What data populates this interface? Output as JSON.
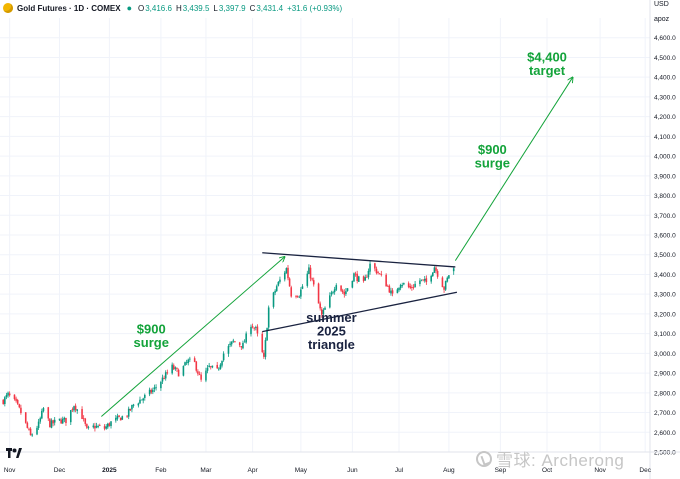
{
  "header": {
    "title": "Gold Futures · 1D · COMEX",
    "open_label": "O",
    "open": "3,416.6",
    "high_label": "H",
    "high": "3,439.5",
    "low_label": "L",
    "low": "3,397.9",
    "close_label": "C",
    "close": "3,431.4",
    "change": "+31.6 (+0.93%)",
    "currency": "USD",
    "unit": "apoz"
  },
  "watermark": {
    "text": "雪球: Archerong"
  },
  "colors": {
    "up": "#089981",
    "down": "#f23645",
    "annotation": "#13a33a",
    "pattern": "#1a2340",
    "grid": "#f0f3fa"
  },
  "icons": {
    "status": "status-dot-icon",
    "logo": "gold-logo-icon",
    "brand": "tradingview-logo-icon",
    "watermark": "snowball-icon"
  },
  "chart_data": {
    "type": "candlestick",
    "y_ticks": [
      2500,
      2600,
      2700,
      2800,
      2900,
      3000,
      3100,
      3200,
      3300,
      3400,
      3500,
      3600,
      3700,
      3800,
      3900,
      4000,
      4100,
      4200,
      4300,
      4400,
      4500,
      4600
    ],
    "y_tick_labels": [
      "2,500.0",
      "2,600.0",
      "2,700.0",
      "2,800.0",
      "2,900.0",
      "3,000.0",
      "3,100.0",
      "3,200.0",
      "3,300.0",
      "3,400.0",
      "3,500.0",
      "3,600.0",
      "3,700.0",
      "3,800.0",
      "3,900.0",
      "4,000.0",
      "4,100.0",
      "4,200.0",
      "4,300.0",
      "4,400.0",
      "4,500.0",
      "4,600.0"
    ],
    "ylim": [
      2500,
      4700
    ],
    "x_range": [
      "2024-10-26",
      "2025-12-04"
    ],
    "x_ticks": [
      {
        "label": "Nov",
        "date": "2024-11-01"
      },
      {
        "label": "Dec",
        "date": "2024-12-02"
      },
      {
        "label": "2025",
        "date": "2025-01-02"
      },
      {
        "label": "Feb",
        "date": "2025-02-03"
      },
      {
        "label": "Mar",
        "date": "2025-03-03"
      },
      {
        "label": "Apr",
        "date": "2025-04-01"
      },
      {
        "label": "May",
        "date": "2025-05-01"
      },
      {
        "label": "Jun",
        "date": "2025-06-02"
      },
      {
        "label": "Jul",
        "date": "2025-07-01"
      },
      {
        "label": "Aug",
        "date": "2025-08-01"
      },
      {
        "label": "Sep",
        "date": "2025-09-02"
      },
      {
        "label": "Oct",
        "date": "2025-10-01"
      },
      {
        "label": "Nov",
        "date": "2025-11-03"
      },
      {
        "label": "Dec",
        "date": "2025-12-01"
      }
    ],
    "close_path": [
      [
        "2024-10-28",
        2760
      ],
      [
        "2024-10-31",
        2790
      ],
      [
        "2024-11-05",
        2745
      ],
      [
        "2024-11-08",
        2700
      ],
      [
        "2024-11-14",
        2580
      ],
      [
        "2024-11-19",
        2640
      ],
      [
        "2024-11-22",
        2720
      ],
      [
        "2024-11-26",
        2640
      ],
      [
        "2024-12-02",
        2660
      ],
      [
        "2024-12-06",
        2660
      ],
      [
        "2024-12-11",
        2740
      ],
      [
        "2024-12-16",
        2680
      ],
      [
        "2024-12-19",
        2610
      ],
      [
        "2024-12-24",
        2630
      ],
      [
        "2024-12-30",
        2620
      ],
      [
        "2025-01-03",
        2650
      ],
      [
        "2025-01-08",
        2670
      ],
      [
        "2025-01-13",
        2690
      ],
      [
        "2025-01-17",
        2740
      ],
      [
        "2025-01-24",
        2780
      ],
      [
        "2025-01-30",
        2820
      ],
      [
        "2025-02-05",
        2880
      ],
      [
        "2025-02-10",
        2930
      ],
      [
        "2025-02-14",
        2900
      ],
      [
        "2025-02-20",
        2960
      ],
      [
        "2025-02-24",
        2950
      ],
      [
        "2025-02-28",
        2860
      ],
      [
        "2025-03-05",
        2930
      ],
      [
        "2025-03-10",
        2910
      ],
      [
        "2025-03-14",
        3000
      ],
      [
        "2025-03-20",
        3060
      ],
      [
        "2025-03-26",
        3040
      ],
      [
        "2025-03-31",
        3150
      ],
      [
        "2025-04-03",
        3120
      ],
      [
        "2025-04-08",
        2970
      ],
      [
        "2025-04-11",
        3230
      ],
      [
        "2025-04-16",
        3340
      ],
      [
        "2025-04-22",
        3430
      ],
      [
        "2025-04-25",
        3300
      ],
      [
        "2025-04-30",
        3300
      ],
      [
        "2025-05-06",
        3420
      ],
      [
        "2025-05-09",
        3340
      ],
      [
        "2025-05-14",
        3190
      ],
      [
        "2025-05-20",
        3300
      ],
      [
        "2025-05-23",
        3360
      ],
      [
        "2025-05-28",
        3300
      ],
      [
        "2025-06-03",
        3400
      ],
      [
        "2025-06-09",
        3350
      ],
      [
        "2025-06-13",
        3450
      ],
      [
        "2025-06-18",
        3410
      ],
      [
        "2025-06-24",
        3340
      ],
      [
        "2025-06-27",
        3290
      ],
      [
        "2025-07-02",
        3360
      ],
      [
        "2025-07-08",
        3330
      ],
      [
        "2025-07-14",
        3370
      ],
      [
        "2025-07-18",
        3360
      ],
      [
        "2025-07-23",
        3440
      ],
      [
        "2025-07-29",
        3330
      ],
      [
        "2025-08-01",
        3400
      ],
      [
        "2025-08-04",
        3431.4
      ]
    ],
    "trendlines": [
      {
        "name": "triangle-upper-line",
        "from": [
          "2025-04-07",
          3510
        ],
        "to": [
          "2025-08-05",
          3438
        ]
      },
      {
        "name": "triangle-lower-line",
        "from": [
          "2025-04-07",
          3110
        ],
        "to": [
          "2025-08-06",
          3310
        ]
      },
      {
        "name": "prior-surge-arrow",
        "from": [
          "2024-12-28",
          2680
        ],
        "to": [
          "2025-04-21",
          3490
        ]
      },
      {
        "name": "projected-surge-arrow",
        "from": [
          "2025-08-05",
          3470
        ],
        "to": [
          "2025-10-17",
          4400
        ]
      }
    ],
    "annotations": [
      {
        "name": "prior-surge-label",
        "lines": [
          "$900",
          "surge"
        ],
        "at": [
          "2025-01-28",
          3100
        ]
      },
      {
        "name": "projected-surge-label",
        "lines": [
          "$900",
          "surge"
        ],
        "at": [
          "2025-08-28",
          4010
        ]
      },
      {
        "name": "target-label",
        "lines": [
          "$4,400",
          "target"
        ],
        "at": [
          "2025-10-01",
          4480
        ]
      },
      {
        "name": "pattern-label",
        "lines": [
          "summer",
          "2025",
          "triangle"
        ],
        "at": [
          "2025-05-20",
          3160
        ]
      }
    ]
  }
}
